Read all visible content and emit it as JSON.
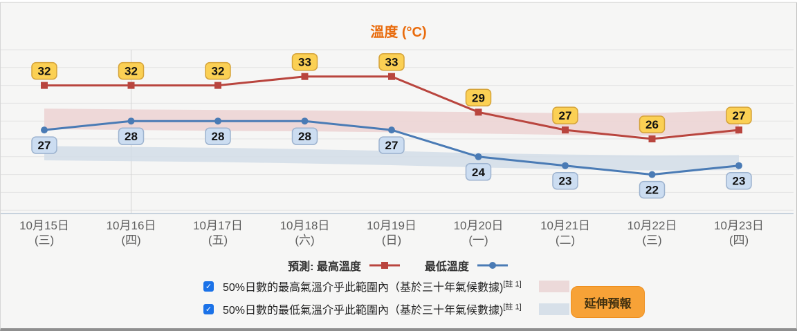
{
  "page_title": "溫度 (°C)",
  "chart_data": {
    "type": "line",
    "title": "溫度 (°C)",
    "categories": [
      {
        "date": "10月15日",
        "weekday": "(三)"
      },
      {
        "date": "10月16日",
        "weekday": "(四)"
      },
      {
        "date": "10月17日",
        "weekday": "(五)"
      },
      {
        "date": "10月18日",
        "weekday": "(六)"
      },
      {
        "date": "10月19日",
        "weekday": "(日)"
      },
      {
        "date": "10月20日",
        "weekday": "(一)"
      },
      {
        "date": "10月21日",
        "weekday": "(二)"
      },
      {
        "date": "10月22日",
        "weekday": "(三)"
      },
      {
        "date": "10月23日",
        "weekday": "(四)"
      }
    ],
    "ylim": [
      18,
      36
    ],
    "grid_step": 2,
    "grid_on": true,
    "series": [
      {
        "name": "最高溫度",
        "values": [
          32,
          32,
          32,
          33,
          33,
          29,
          27,
          26,
          27
        ],
        "color": "#b9453e",
        "marker": "square",
        "badge": {
          "position": "above",
          "fill": "#fbd054",
          "stroke": "#d5a339"
        }
      },
      {
        "name": "最低溫度",
        "values": [
          27,
          28,
          28,
          28,
          27,
          24,
          23,
          22,
          23
        ],
        "color": "#4a7bb5",
        "marker": "circle",
        "badge": {
          "position": "below",
          "fill": "#ccddf1",
          "stroke": "#9db3cf"
        }
      }
    ],
    "bands": [
      {
        "name": "50%日數的最高氣溫範圍 (三十年氣候數據)",
        "color": "#ecd2d2",
        "top": [
          29.4,
          29.3,
          29.25,
          29.2,
          29.1,
          29.0,
          28.9,
          28.9,
          29.2
        ],
        "bottom": [
          27.1,
          27.0,
          26.9,
          26.85,
          26.75,
          26.6,
          26.45,
          26.35,
          26.5
        ]
      },
      {
        "name": "50%日數的最低氣溫範圍 (三十年氣候數據)",
        "color": "#d2dde7",
        "top": [
          25.2,
          25.1,
          25.0,
          24.85,
          24.65,
          24.4,
          24.25,
          24.15,
          24.2
        ],
        "bottom": [
          23.6,
          23.5,
          23.4,
          23.25,
          23.05,
          22.8,
          22.6,
          22.45,
          22.5
        ]
      }
    ],
    "legend_position": "bottom"
  },
  "legend": {
    "prefix": "預測:",
    "max_label": "最高溫度",
    "min_label": "最低溫度"
  },
  "controls": {
    "max_range": {
      "label": "50%日數的最高氣溫介乎此範圍內（基於三十年氣候數據)",
      "sup": "[註 1]",
      "checked": true,
      "check_glyph": "✓",
      "swatch_color": "#ecd9d9"
    },
    "min_range": {
      "label": "50%日數的最低氣溫介乎此範圍內（基於三十年氣候數據)",
      "sup": "[註 1]",
      "checked": true,
      "check_glyph": "✓",
      "swatch_color": "#d7e0e9"
    },
    "extended_forecast_button": "延伸預報"
  }
}
